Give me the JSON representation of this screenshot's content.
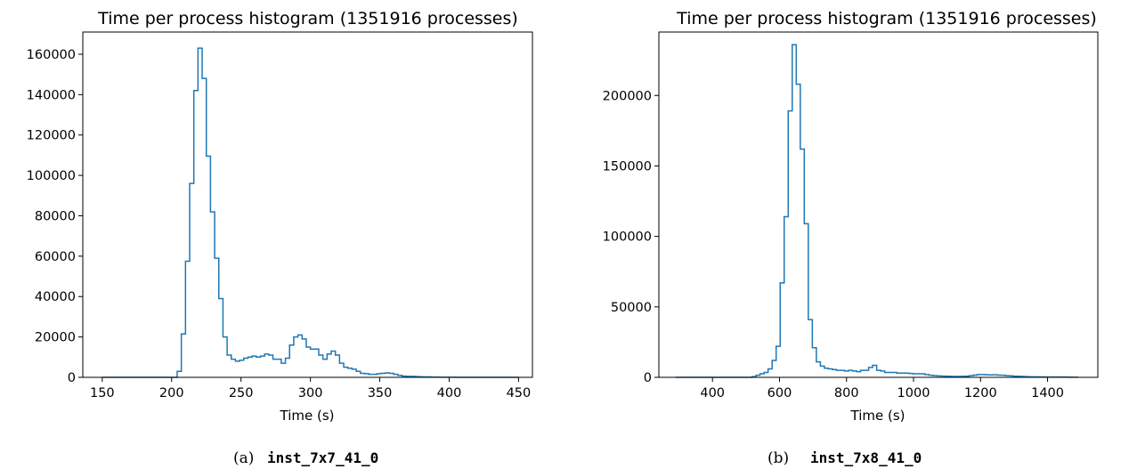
{
  "colors": {
    "line": "#1f77b4",
    "axis": "#000000",
    "background": "#ffffff"
  },
  "chart_data": [
    {
      "type": "histogram",
      "title": "Time per process histogram (1351916 processes)",
      "xlabel": "Time (s)",
      "ylabel": "",
      "caption_letter": "(a)",
      "caption_label": "inst_7x7_41_0",
      "xlim": [
        136,
        460
      ],
      "ylim": [
        0,
        171000
      ],
      "xticks": [
        150,
        200,
        250,
        300,
        350,
        400,
        450
      ],
      "yticks": [
        0,
        20000,
        40000,
        60000,
        80000,
        100000,
        120000,
        140000,
        160000
      ],
      "grid": false,
      "bin_start": 150,
      "bin_width": 3,
      "counts": [
        0,
        0,
        0,
        0,
        0,
        0,
        0,
        0,
        0,
        0,
        0,
        0,
        0,
        0,
        0,
        0,
        0,
        0,
        3000,
        21500,
        57500,
        96000,
        142000,
        163000,
        148000,
        109500,
        82000,
        59000,
        39000,
        20000,
        11000,
        9000,
        8000,
        8500,
        9500,
        10000,
        10500,
        10000,
        10500,
        11500,
        11000,
        9000,
        9000,
        7000,
        9500,
        16000,
        20000,
        21000,
        19000,
        15000,
        14000,
        14000,
        11000,
        9000,
        11500,
        13000,
        11000,
        7000,
        5000,
        4500,
        4000,
        3000,
        2000,
        1800,
        1500,
        1500,
        1800,
        2000,
        2200,
        2000,
        1500,
        1000,
        600,
        500,
        500,
        400,
        300,
        200,
        200,
        100,
        100,
        80,
        60,
        40,
        30,
        20,
        20,
        10,
        10,
        10,
        0,
        0,
        0,
        0,
        0,
        0,
        0,
        0,
        0,
        0
      ]
    },
    {
      "type": "histogram",
      "title": "Time per process histogram (1351916 processes)",
      "xlabel": "Time (s)",
      "ylabel": "",
      "caption_letter": "(b)",
      "caption_label": "inst_7x8_41_0",
      "xlim": [
        240,
        1550
      ],
      "ylim": [
        0,
        245000
      ],
      "xticks": [
        400,
        600,
        800,
        1000,
        1200,
        1400
      ],
      "yticks": [
        0,
        50000,
        100000,
        150000,
        200000
      ],
      "grid": false,
      "bin_start": 290,
      "bin_width": 12,
      "counts": [
        0,
        0,
        0,
        0,
        0,
        0,
        0,
        0,
        0,
        0,
        0,
        0,
        0,
        0,
        0,
        0,
        0,
        0,
        0,
        500,
        1500,
        2500,
        3500,
        6000,
        12000,
        22000,
        67000,
        114000,
        189000,
        236000,
        208000,
        162000,
        109000,
        41000,
        21000,
        11000,
        8000,
        6500,
        6000,
        5500,
        5000,
        5000,
        4500,
        5000,
        4500,
        4000,
        5000,
        5000,
        7000,
        8500,
        5000,
        4500,
        3500,
        3500,
        3500,
        3000,
        3000,
        3000,
        2800,
        2500,
        2500,
        2500,
        2000,
        1500,
        1200,
        1000,
        900,
        800,
        700,
        600,
        600,
        700,
        800,
        1200,
        1600,
        2000,
        2000,
        1800,
        1700,
        1800,
        1600,
        1500,
        1200,
        1000,
        800,
        700,
        600,
        500,
        400,
        300,
        300,
        300,
        200,
        200,
        200,
        200,
        200,
        150,
        100,
        100
      ]
    }
  ]
}
